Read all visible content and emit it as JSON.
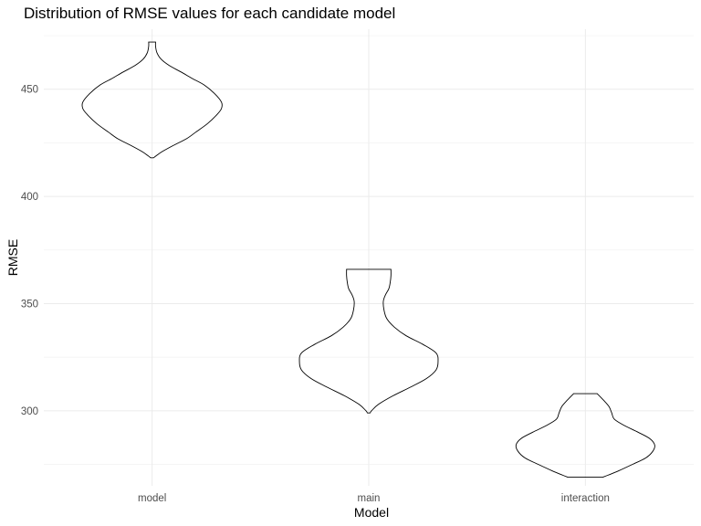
{
  "chart_data": {
    "type": "violin",
    "title": "Distribution of RMSE values for each candidate model",
    "xlabel": "Model",
    "ylabel": "RMSE",
    "categories": [
      "model",
      "main",
      "interaction"
    ],
    "ylim": [
      265,
      478
    ],
    "yticks": [
      300,
      350,
      400,
      450
    ],
    "grid": true,
    "series": [
      {
        "category": "model",
        "profile": [
          [
            418,
            0.02
          ],
          [
            419,
            0.06
          ],
          [
            421,
            0.15
          ],
          [
            424,
            0.32
          ],
          [
            427,
            0.5
          ],
          [
            430,
            0.63
          ],
          [
            434,
            0.8
          ],
          [
            438,
            0.93
          ],
          [
            441,
            1.0
          ],
          [
            444,
            1.0
          ],
          [
            448,
            0.9
          ],
          [
            452,
            0.75
          ],
          [
            455,
            0.58
          ],
          [
            458,
            0.42
          ],
          [
            461,
            0.25
          ],
          [
            464,
            0.13
          ],
          [
            467,
            0.07
          ],
          [
            470,
            0.05
          ],
          [
            472,
            0.05
          ]
        ]
      },
      {
        "category": "main",
        "profile": [
          [
            299,
            0.02
          ],
          [
            300,
            0.04
          ],
          [
            303,
            0.14
          ],
          [
            307,
            0.35
          ],
          [
            311,
            0.6
          ],
          [
            315,
            0.83
          ],
          [
            319,
            0.97
          ],
          [
            323,
            1.0
          ],
          [
            327,
            0.97
          ],
          [
            331,
            0.78
          ],
          [
            335,
            0.54
          ],
          [
            339,
            0.37
          ],
          [
            343,
            0.26
          ],
          [
            347,
            0.22
          ],
          [
            351,
            0.21
          ],
          [
            354,
            0.24
          ],
          [
            357,
            0.29
          ],
          [
            360,
            0.31
          ],
          [
            363,
            0.32
          ],
          [
            366,
            0.32
          ]
        ]
      },
      {
        "category": "interaction",
        "profile": [
          [
            269,
            0.25
          ],
          [
            270,
            0.33
          ],
          [
            272,
            0.48
          ],
          [
            275,
            0.68
          ],
          [
            278,
            0.87
          ],
          [
            281,
            0.97
          ],
          [
            284,
            1.0
          ],
          [
            287,
            0.93
          ],
          [
            290,
            0.76
          ],
          [
            293,
            0.57
          ],
          [
            296,
            0.42
          ],
          [
            299,
            0.38
          ],
          [
            302,
            0.34
          ],
          [
            305,
            0.26
          ],
          [
            308,
            0.17
          ]
        ]
      }
    ]
  }
}
